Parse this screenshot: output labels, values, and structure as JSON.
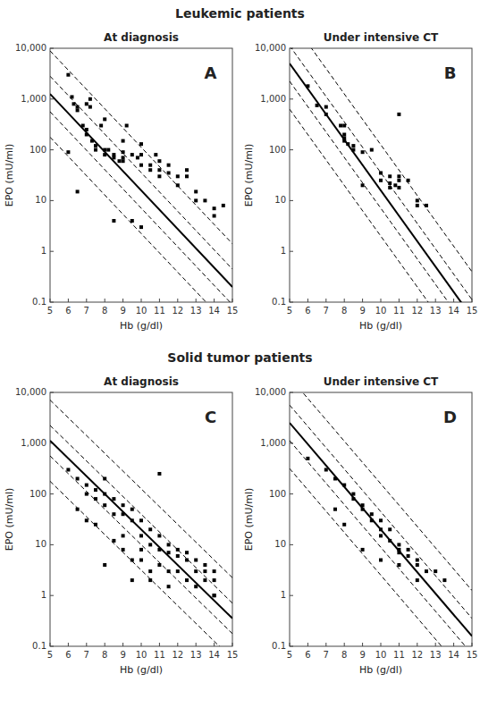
{
  "chart_data": [
    {
      "type": "scatter",
      "heading": "Leukemic patients",
      "title": "At diagnosis",
      "annotation": "A",
      "xlabel": "Hb (g/dl)",
      "ylabel": "EPO (mU/ml)",
      "log": "y",
      "grid": false,
      "xlim": [
        5,
        15
      ],
      "ylim": [
        0.1,
        10000
      ],
      "xticks": [
        5,
        6,
        7,
        8,
        9,
        10,
        11,
        12,
        13,
        14,
        15
      ],
      "yticks": [
        0.1,
        1,
        10,
        100,
        {
          "value": 1000,
          "label": "1,000"
        },
        {
          "value": 10000,
          "label": "10,000"
        }
      ],
      "series": [
        {
          "type": "scatter",
          "marker": "square",
          "color": "black",
          "x": [
            6.0,
            6.2,
            6.3,
            6.5,
            6.5,
            6.8,
            7.0,
            7.0,
            7.0,
            7.2,
            7.2,
            7.3,
            7.5,
            7.5,
            7.8,
            8.0,
            8.0,
            8.0,
            8.2,
            8.5,
            8.5,
            8.8,
            9.0,
            9.0,
            9.0,
            9.0,
            9.2,
            9.5,
            9.8,
            10.0,
            10.0,
            10.0,
            10.5,
            10.5,
            10.8,
            11.0,
            11.0,
            11.0,
            11.5,
            11.5,
            12.0,
            12.0,
            12.5,
            12.5,
            13.0,
            13.0,
            13.5,
            14.0,
            14.0,
            14.5,
            6.0,
            6.5,
            8.5,
            9.5,
            10.0
          ],
          "values": [
            3000,
            1100,
            800,
            700,
            600,
            300,
            800,
            250,
            200,
            1000,
            700,
            150,
            120,
            100,
            300,
            400,
            100,
            80,
            100,
            80,
            70,
            60,
            150,
            90,
            70,
            60,
            300,
            80,
            70,
            130,
            80,
            50,
            50,
            40,
            80,
            60,
            40,
            30,
            50,
            35,
            30,
            20,
            40,
            30,
            15,
            10,
            10,
            5,
            7,
            8,
            90,
            15,
            4,
            4,
            3
          ]
        },
        {
          "type": "line",
          "line_style": "solid",
          "color": "black",
          "slope": -0.38,
          "intercept": 5.0
        },
        {
          "type": "line",
          "line_style": "dashed",
          "color": "black",
          "slope": -0.38,
          "intercept": 5.35
        },
        {
          "type": "line",
          "line_style": "dashed",
          "color": "black",
          "slope": -0.38,
          "intercept": 4.65
        },
        {
          "type": "line",
          "line_style": "dashed",
          "color": "black",
          "slope": -0.38,
          "intercept": 5.85
        },
        {
          "type": "line",
          "line_style": "dashed",
          "color": "black",
          "slope": -0.38,
          "intercept": 4.15
        }
      ]
    },
    {
      "type": "scatter",
      "title": "Under intensive CT",
      "annotation": "B",
      "xlabel": "Hb (g/dl)",
      "ylabel": "EPO (mU/ml)",
      "log": "y",
      "grid": false,
      "xlim": [
        5,
        15
      ],
      "ylim": [
        0.1,
        10000
      ],
      "xticks": [
        5,
        6,
        7,
        8,
        9,
        10,
        11,
        12,
        13,
        14,
        15
      ],
      "yticks": [
        0.1,
        1,
        10,
        100,
        {
          "value": 1000,
          "label": "1,000"
        },
        {
          "value": 10000,
          "label": "10,000"
        }
      ],
      "series": [
        {
          "type": "scatter",
          "marker": "square",
          "color": "black",
          "x": [
            6.0,
            6.5,
            7.0,
            7.0,
            7.8,
            8.0,
            8.0,
            8.0,
            8.0,
            8.2,
            8.5,
            8.5,
            9.0,
            9.5,
            10.0,
            10.0,
            10.5,
            10.5,
            10.5,
            10.8,
            11.0,
            11.0,
            11.0,
            11.5,
            12.0,
            12.0,
            12.5,
            11.0,
            9.0
          ],
          "values": [
            1800,
            750,
            700,
            500,
            300,
            300,
            200,
            170,
            150,
            130,
            120,
            100,
            90,
            100,
            35,
            25,
            30,
            22,
            18,
            20,
            30,
            25,
            18,
            25,
            10,
            8,
            8,
            500,
            20
          ]
        },
        {
          "type": "line",
          "line_style": "solid",
          "color": "black",
          "slope": -0.5,
          "intercept": 6.2
        },
        {
          "type": "line",
          "line_style": "dashed",
          "color": "black",
          "slope": -0.5,
          "intercept": 6.55
        },
        {
          "type": "line",
          "line_style": "dashed",
          "color": "black",
          "slope": -0.5,
          "intercept": 5.85
        },
        {
          "type": "line",
          "line_style": "dashed",
          "color": "black",
          "slope": -0.5,
          "intercept": 7.1
        },
        {
          "type": "line",
          "line_style": "dashed",
          "color": "black",
          "slope": -0.5,
          "intercept": 5.3
        }
      ]
    },
    {
      "type": "scatter",
      "heading": "Solid tumor patients",
      "title": "At diagnosis",
      "annotation": "C",
      "xlabel": "Hb (g/dl)",
      "ylabel": "EPO (mU/ml)",
      "log": "y",
      "grid": false,
      "xlim": [
        5,
        15
      ],
      "ylim": [
        0.1,
        10000
      ],
      "xticks": [
        5,
        6,
        7,
        8,
        9,
        10,
        11,
        12,
        13,
        14,
        15
      ],
      "yticks": [
        0.1,
        1,
        10,
        100,
        {
          "value": 1000,
          "label": "1,000"
        },
        {
          "value": 10000,
          "label": "10,000"
        }
      ],
      "series": [
        {
          "type": "scatter",
          "marker": "square",
          "color": "black",
          "x": [
            6.0,
            6.5,
            7.0,
            7.0,
            7.5,
            7.5,
            8.0,
            8.0,
            8.5,
            8.5,
            9.0,
            9.0,
            9.5,
            9.5,
            10.0,
            10.0,
            10.5,
            10.5,
            11.0,
            11.0,
            11.5,
            11.5,
            12.0,
            12.0,
            12.5,
            12.5,
            13.0,
            13.0,
            13.5,
            13.5,
            14.0,
            14.0,
            8.0,
            9.0,
            10.0,
            11.0,
            7.0,
            8.5,
            9.5,
            10.5,
            11.5,
            12.5,
            13.5,
            14.0,
            6.5,
            7.5,
            9.0,
            10.0,
            11.0,
            12.0,
            13.0,
            14.0,
            8.0,
            9.5,
            10.5,
            11.5
          ],
          "values": [
            300,
            200,
            150,
            100,
            120,
            80,
            100,
            60,
            80,
            40,
            60,
            40,
            50,
            30,
            30,
            15,
            20,
            10,
            15,
            8,
            10,
            7,
            8,
            6,
            7,
            5,
            5,
            3,
            4,
            3,
            3,
            2,
            200,
            8,
            8,
            250,
            30,
            12,
            5,
            3,
            3,
            2,
            2,
            1,
            50,
            25,
            15,
            5,
            4,
            3,
            1.5,
            1,
            4,
            2,
            2,
            1.5
          ]
        },
        {
          "type": "line",
          "line_style": "solid",
          "color": "black",
          "slope": -0.35,
          "intercept": 4.8
        },
        {
          "type": "line",
          "line_style": "dashed",
          "color": "black",
          "slope": -0.35,
          "intercept": 5.1
        },
        {
          "type": "line",
          "line_style": "dashed",
          "color": "black",
          "slope": -0.35,
          "intercept": 4.5
        },
        {
          "type": "line",
          "line_style": "dashed",
          "color": "black",
          "slope": -0.35,
          "intercept": 5.6
        },
        {
          "type": "line",
          "line_style": "dashed",
          "color": "black",
          "slope": -0.35,
          "intercept": 4.0
        }
      ]
    },
    {
      "type": "scatter",
      "title": "Under intensive CT",
      "annotation": "D",
      "xlabel": "Hb (g/dl)",
      "ylabel": "EPO (mU/ml)",
      "log": "y",
      "grid": false,
      "xlim": [
        5,
        15
      ],
      "ylim": [
        0.1,
        10000
      ],
      "xticks": [
        5,
        6,
        7,
        8,
        9,
        10,
        11,
        12,
        13,
        14,
        15
      ],
      "yticks": [
        0.1,
        1,
        10,
        100,
        {
          "value": 1000,
          "label": "1,000"
        },
        {
          "value": 10000,
          "label": "10,000"
        }
      ],
      "series": [
        {
          "type": "scatter",
          "marker": "square",
          "color": "black",
          "x": [
            6.0,
            7.0,
            7.5,
            8.0,
            8.5,
            8.5,
            9.0,
            9.0,
            9.5,
            9.5,
            10.0,
            10.0,
            10.0,
            10.5,
            10.5,
            11.0,
            11.0,
            11.0,
            11.5,
            11.5,
            12.0,
            12.0,
            12.5,
            13.0,
            13.5,
            7.5,
            8.0,
            9.0,
            10.0,
            11.0,
            12.0
          ],
          "values": [
            500,
            300,
            200,
            150,
            100,
            80,
            60,
            50,
            40,
            30,
            30,
            20,
            15,
            20,
            12,
            10,
            8,
            7,
            8,
            6,
            5,
            4,
            3,
            3,
            2,
            50,
            25,
            8,
            5,
            4,
            2
          ]
        },
        {
          "type": "line",
          "line_style": "solid",
          "color": "black",
          "slope": -0.42,
          "intercept": 5.5
        },
        {
          "type": "line",
          "line_style": "dashed",
          "color": "black",
          "slope": -0.42,
          "intercept": 5.85
        },
        {
          "type": "line",
          "line_style": "dashed",
          "color": "black",
          "slope": -0.42,
          "intercept": 5.15
        },
        {
          "type": "line",
          "line_style": "dashed",
          "color": "black",
          "slope": -0.42,
          "intercept": 6.4
        },
        {
          "type": "line",
          "line_style": "dashed",
          "color": "black",
          "slope": -0.42,
          "intercept": 4.6
        }
      ]
    }
  ]
}
